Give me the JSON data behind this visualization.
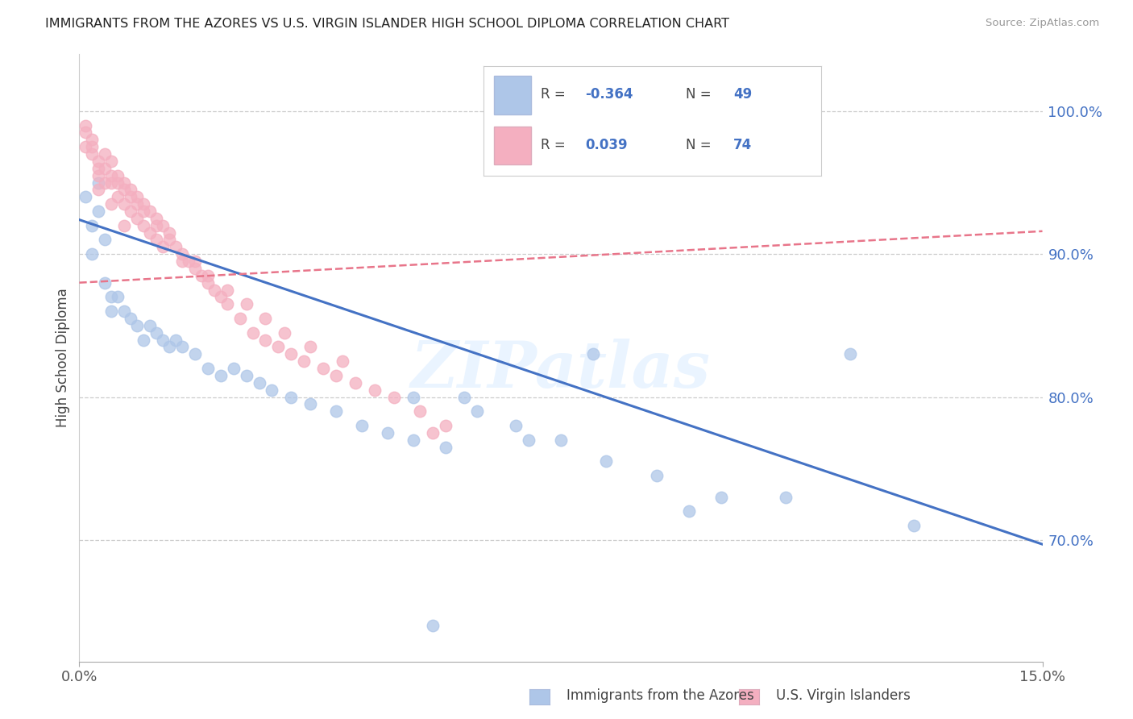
{
  "title": "IMMIGRANTS FROM THE AZORES VS U.S. VIRGIN ISLANDER HIGH SCHOOL DIPLOMA CORRELATION CHART",
  "source": "Source: ZipAtlas.com",
  "ylabel": "High School Diploma",
  "legend_blue_label": "Immigrants from the Azores",
  "legend_pink_label": "U.S. Virgin Islanders",
  "R_blue": -0.364,
  "N_blue": 49,
  "R_pink": 0.039,
  "N_pink": 74,
  "blue_color": "#aec6e8",
  "pink_color": "#f4afc0",
  "blue_line_color": "#4472c4",
  "pink_line_color": "#e8758a",
  "watermark": "ZIPatlas",
  "x_min": 0.0,
  "x_max": 0.15,
  "y_min": 0.615,
  "y_max": 1.04,
  "y_ticks": [
    0.7,
    0.8,
    0.9,
    1.0
  ],
  "y_tick_labels": [
    "70.0%",
    "80.0%",
    "90.0%",
    "100.0%"
  ],
  "blue_trend_x": [
    0.0,
    0.15
  ],
  "blue_trend_y": [
    0.924,
    0.697
  ],
  "pink_trend_x": [
    0.0,
    0.15
  ],
  "pink_trend_y": [
    0.88,
    0.916
  ],
  "blue_x": [
    0.001,
    0.002,
    0.002,
    0.003,
    0.003,
    0.004,
    0.004,
    0.005,
    0.005,
    0.006,
    0.007,
    0.008,
    0.009,
    0.01,
    0.011,
    0.012,
    0.013,
    0.014,
    0.015,
    0.016,
    0.018,
    0.02,
    0.022,
    0.024,
    0.026,
    0.028,
    0.03,
    0.033,
    0.036,
    0.04,
    0.044,
    0.048,
    0.052,
    0.057,
    0.062,
    0.068,
    0.075,
    0.082,
    0.09,
    0.1,
    0.11,
    0.12,
    0.13,
    0.052,
    0.06,
    0.07,
    0.08,
    0.095,
    0.055
  ],
  "blue_y": [
    0.94,
    0.92,
    0.9,
    0.95,
    0.93,
    0.91,
    0.88,
    0.87,
    0.86,
    0.87,
    0.86,
    0.855,
    0.85,
    0.84,
    0.85,
    0.845,
    0.84,
    0.835,
    0.84,
    0.835,
    0.83,
    0.82,
    0.815,
    0.82,
    0.815,
    0.81,
    0.805,
    0.8,
    0.795,
    0.79,
    0.78,
    0.775,
    0.77,
    0.765,
    0.79,
    0.78,
    0.77,
    0.755,
    0.745,
    0.73,
    0.73,
    0.83,
    0.71,
    0.8,
    0.8,
    0.77,
    0.83,
    0.72,
    0.64
  ],
  "pink_x": [
    0.001,
    0.001,
    0.002,
    0.002,
    0.003,
    0.003,
    0.003,
    0.004,
    0.004,
    0.005,
    0.005,
    0.005,
    0.006,
    0.006,
    0.007,
    0.007,
    0.007,
    0.008,
    0.008,
    0.009,
    0.009,
    0.01,
    0.01,
    0.011,
    0.011,
    0.012,
    0.012,
    0.013,
    0.013,
    0.014,
    0.015,
    0.016,
    0.017,
    0.018,
    0.019,
    0.02,
    0.021,
    0.022,
    0.023,
    0.025,
    0.027,
    0.029,
    0.031,
    0.033,
    0.035,
    0.038,
    0.04,
    0.043,
    0.046,
    0.049,
    0.053,
    0.057,
    0.001,
    0.002,
    0.003,
    0.004,
    0.005,
    0.006,
    0.007,
    0.008,
    0.009,
    0.01,
    0.012,
    0.014,
    0.016,
    0.018,
    0.02,
    0.023,
    0.026,
    0.029,
    0.032,
    0.036,
    0.041,
    0.055
  ],
  "pink_y": [
    0.99,
    0.975,
    0.98,
    0.97,
    0.96,
    0.955,
    0.945,
    0.97,
    0.95,
    0.965,
    0.95,
    0.935,
    0.955,
    0.94,
    0.95,
    0.935,
    0.92,
    0.945,
    0.93,
    0.94,
    0.925,
    0.935,
    0.92,
    0.93,
    0.915,
    0.925,
    0.91,
    0.92,
    0.905,
    0.915,
    0.905,
    0.895,
    0.895,
    0.89,
    0.885,
    0.88,
    0.875,
    0.87,
    0.865,
    0.855,
    0.845,
    0.84,
    0.835,
    0.83,
    0.825,
    0.82,
    0.815,
    0.81,
    0.805,
    0.8,
    0.79,
    0.78,
    0.985,
    0.975,
    0.965,
    0.96,
    0.955,
    0.95,
    0.945,
    0.94,
    0.935,
    0.93,
    0.92,
    0.91,
    0.9,
    0.895,
    0.885,
    0.875,
    0.865,
    0.855,
    0.845,
    0.835,
    0.825,
    0.775
  ]
}
